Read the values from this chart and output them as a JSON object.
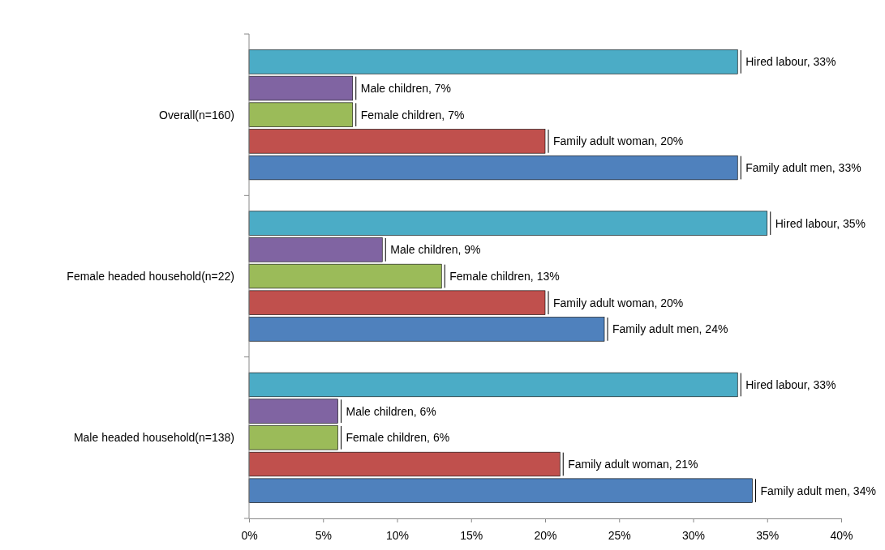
{
  "chart_data": {
    "type": "bar",
    "orientation": "horizontal",
    "categories": [
      "Overall(n=160)",
      "Female headed household(n=22)",
      "Male headed household(n=138)"
    ],
    "series": [
      {
        "color": "#4f81bd",
        "values": [
          33,
          24,
          34
        ],
        "value_labels": [
          "Family adult men, 33%",
          "Family adult men, 24%",
          "Family adult men, 34%"
        ]
      },
      {
        "color": "#c0504d",
        "values": [
          20,
          20,
          21
        ],
        "value_labels": [
          "Family adult woman, 20%",
          "Family adult woman, 20%",
          "Family adult woman, 21%"
        ]
      },
      {
        "color": "#9bbb59",
        "values": [
          7,
          13,
          6
        ],
        "value_labels": [
          "Female children, 7%",
          "Female children, 13%",
          "Female children, 6%"
        ]
      },
      {
        "color": "#8064a2",
        "values": [
          7,
          9,
          6
        ],
        "value_labels": [
          "Male children, 7%",
          "Male children, 9%",
          "Male children, 6%"
        ]
      },
      {
        "color": "#4bacc6",
        "values": [
          33,
          35,
          33
        ],
        "value_labels": [
          "Hired labour, 33%",
          "Hired labour, 35%",
          "Hired labour, 33%"
        ]
      }
    ],
    "xlim": [
      0,
      40
    ],
    "xticks": [
      {
        "value": 0,
        "label": "0%"
      },
      {
        "value": 5,
        "label": "5%"
      },
      {
        "value": 10,
        "label": "10%"
      },
      {
        "value": 15,
        "label": "15%"
      },
      {
        "value": 20,
        "label": "20%"
      },
      {
        "value": 25,
        "label": "25%"
      },
      {
        "value": 30,
        "label": "30%"
      },
      {
        "value": 35,
        "label": "35%"
      },
      {
        "value": 40,
        "label": "40%"
      }
    ],
    "grid": false
  }
}
